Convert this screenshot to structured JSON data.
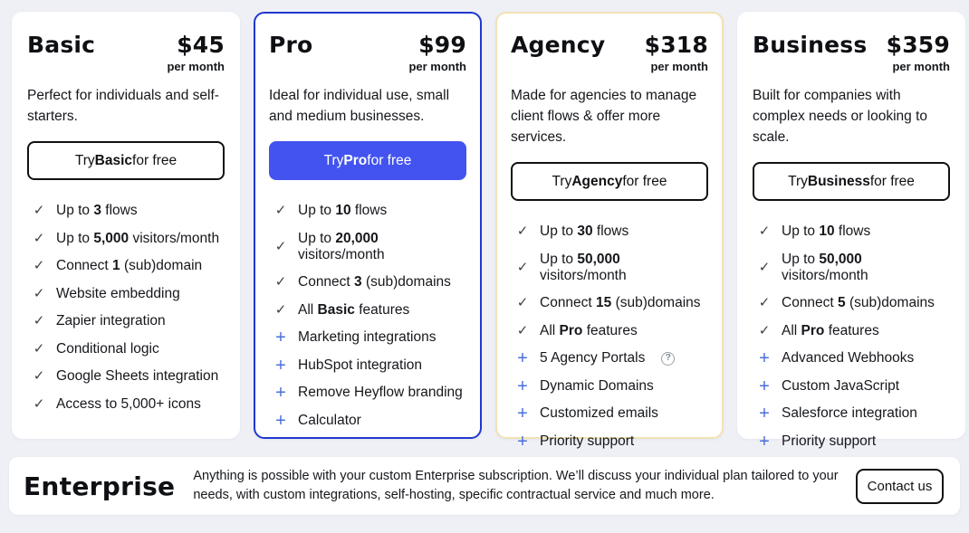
{
  "colors": {
    "page_bg": "#eef0f6",
    "card_bg": "#ffffff",
    "pro_card_border": "#2038cf",
    "agency_card_border": "#f2e2b4",
    "primary_button_bg": "#4353ef",
    "primary_button_text": "#ffffff",
    "outline_button_border": "#101114",
    "check_icon_color": "#3c4149",
    "plus_icon_color": "#4a6fd8"
  },
  "plans": [
    {
      "id": "basic",
      "title": "Basic",
      "price": "$45",
      "period": "per month",
      "description": "Perfect for individuals and self-starters.",
      "card_style": "plain",
      "cta_style": "outline",
      "cta": [
        {
          "t": "Try "
        },
        {
          "t": "Basic",
          "b": true
        },
        {
          "t": " for free"
        }
      ],
      "features": [
        {
          "icon": "check",
          "segments": [
            {
              "t": "Up to "
            },
            {
              "t": "3",
              "b": true
            },
            {
              "t": " flows"
            }
          ]
        },
        {
          "icon": "check",
          "segments": [
            {
              "t": "Up to "
            },
            {
              "t": "5,000",
              "b": true
            },
            {
              "t": " visitors/month"
            }
          ]
        },
        {
          "icon": "check",
          "segments": [
            {
              "t": "Connect "
            },
            {
              "t": "1",
              "b": true
            },
            {
              "t": " (sub)domain"
            }
          ]
        },
        {
          "icon": "check",
          "segments": [
            {
              "t": "Website embedding"
            }
          ]
        },
        {
          "icon": "check",
          "segments": [
            {
              "t": "Zapier integration"
            }
          ]
        },
        {
          "icon": "check",
          "segments": [
            {
              "t": "Conditional logic"
            }
          ]
        },
        {
          "icon": "check",
          "segments": [
            {
              "t": "Google Sheets integration"
            }
          ]
        },
        {
          "icon": "check",
          "segments": [
            {
              "t": "Access to 5,000+ icons"
            }
          ]
        }
      ]
    },
    {
      "id": "pro",
      "title": "Pro",
      "price": "$99",
      "period": "per month",
      "description": "Ideal for individual use, small and medium businesses.",
      "card_style": "pro",
      "cta_style": "solid",
      "cta": [
        {
          "t": "Try "
        },
        {
          "t": "Pro",
          "b": true
        },
        {
          "t": " for free"
        }
      ],
      "features": [
        {
          "icon": "check",
          "segments": [
            {
              "t": "Up to "
            },
            {
              "t": "10",
              "b": true
            },
            {
              "t": " flows"
            }
          ]
        },
        {
          "icon": "check",
          "segments": [
            {
              "t": "Up to "
            },
            {
              "t": "20,000",
              "b": true
            },
            {
              "t": " visitors/month"
            }
          ]
        },
        {
          "icon": "check",
          "segments": [
            {
              "t": "Connect "
            },
            {
              "t": "3",
              "b": true
            },
            {
              "t": " (sub)domains"
            }
          ]
        },
        {
          "icon": "check",
          "segments": [
            {
              "t": "All "
            },
            {
              "t": "Basic",
              "b": true
            },
            {
              "t": " features"
            }
          ]
        },
        {
          "icon": "plus",
          "segments": [
            {
              "t": "Marketing integrations"
            }
          ]
        },
        {
          "icon": "plus",
          "segments": [
            {
              "t": "HubSpot integration"
            }
          ]
        },
        {
          "icon": "plus",
          "segments": [
            {
              "t": "Remove Heyflow branding"
            }
          ]
        },
        {
          "icon": "plus",
          "segments": [
            {
              "t": "Calculator"
            }
          ]
        }
      ]
    },
    {
      "id": "agency",
      "title": "Agency",
      "price": "$318",
      "period": "per month",
      "description": "Made for agencies to manage client flows & offer more services.",
      "card_style": "agency",
      "cta_style": "outline",
      "cta": [
        {
          "t": "Try "
        },
        {
          "t": "Agency",
          "b": true
        },
        {
          "t": " for free"
        }
      ],
      "features": [
        {
          "icon": "check",
          "segments": [
            {
              "t": "Up to "
            },
            {
              "t": "30",
              "b": true
            },
            {
              "t": " flows"
            }
          ]
        },
        {
          "icon": "check",
          "segments": [
            {
              "t": "Up to "
            },
            {
              "t": "50,000",
              "b": true
            },
            {
              "t": " visitors/month"
            }
          ]
        },
        {
          "icon": "check",
          "segments": [
            {
              "t": "Connect "
            },
            {
              "t": "15",
              "b": true
            },
            {
              "t": " (sub)domains"
            }
          ]
        },
        {
          "icon": "check",
          "segments": [
            {
              "t": "All "
            },
            {
              "t": "Pro",
              "b": true
            },
            {
              "t": " features"
            }
          ]
        },
        {
          "icon": "plus",
          "segments": [
            {
              "t": "5 Agency Portals"
            }
          ],
          "help": true,
          "help_glyph": "?"
        },
        {
          "icon": "plus",
          "segments": [
            {
              "t": "Dynamic Domains"
            }
          ]
        },
        {
          "icon": "plus",
          "segments": [
            {
              "t": "Customized emails"
            }
          ]
        },
        {
          "icon": "plus",
          "segments": [
            {
              "t": "Priority support"
            }
          ]
        }
      ]
    },
    {
      "id": "business",
      "title": "Business",
      "price": "$359",
      "period": "per month",
      "description": "Built for companies with complex needs or looking to scale.",
      "card_style": "plain",
      "cta_style": "outline",
      "cta": [
        {
          "t": "Try "
        },
        {
          "t": "Business",
          "b": true
        },
        {
          "t": " for free"
        }
      ],
      "features": [
        {
          "icon": "check",
          "segments": [
            {
              "t": "Up to "
            },
            {
              "t": "10",
              "b": true
            },
            {
              "t": " flows"
            }
          ]
        },
        {
          "icon": "check",
          "segments": [
            {
              "t": "Up to "
            },
            {
              "t": "50,000",
              "b": true
            },
            {
              "t": " visitors/month"
            }
          ]
        },
        {
          "icon": "check",
          "segments": [
            {
              "t": "Connect "
            },
            {
              "t": "5",
              "b": true
            },
            {
              "t": " (sub)domains"
            }
          ]
        },
        {
          "icon": "check",
          "segments": [
            {
              "t": "All "
            },
            {
              "t": "Pro",
              "b": true
            },
            {
              "t": " features"
            }
          ]
        },
        {
          "icon": "plus",
          "segments": [
            {
              "t": "Advanced Webhooks"
            }
          ]
        },
        {
          "icon": "plus",
          "segments": [
            {
              "t": "Custom JavaScript"
            }
          ]
        },
        {
          "icon": "plus",
          "segments": [
            {
              "t": "Salesforce integration"
            }
          ]
        },
        {
          "icon": "plus",
          "segments": [
            {
              "t": "Priority support"
            }
          ]
        }
      ]
    }
  ],
  "enterprise": {
    "title": "Enterprise",
    "description": "Anything is possible with your custom Enterprise subscription. We’ll discuss your individual plan tailored to your needs, with custom integrations, self-hosting, specific contractual service and much more.",
    "contact_button": "Contact us"
  },
  "icons": {
    "check": "✓",
    "plus": "+"
  }
}
